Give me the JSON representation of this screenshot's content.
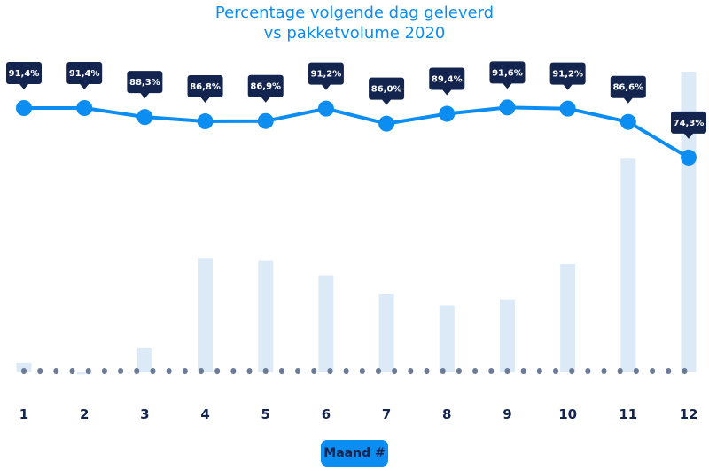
{
  "chart_data": {
    "type": "bar+line",
    "title": "Percentage volgende dag geleverd",
    "subtitle": "vs pakketvolume 2020",
    "xlabel": "Maand #",
    "categories": [
      "1",
      "2",
      "3",
      "4",
      "5",
      "6",
      "7",
      "8",
      "9",
      "10",
      "11",
      "12"
    ],
    "series": [
      {
        "type": "line",
        "values": [
          91.4,
          91.4,
          88.3,
          86.8,
          86.9,
          91.2,
          86.0,
          89.4,
          91.6,
          91.2,
          86.6,
          74.3
        ],
        "labels": [
          "91,4%",
          "91,4%",
          "88,3%",
          "86,8%",
          "86,9%",
          "91,2%",
          "86,0%",
          "89,4%",
          "91,6%",
          "91,2%",
          "86,6%",
          "74,3%"
        ]
      },
      {
        "type": "bar",
        "values": [
          3,
          -1,
          8,
          38,
          37,
          32,
          26,
          22,
          24,
          36,
          71,
          100
        ]
      }
    ],
    "grid": false,
    "colors": {
      "line": "#0b8df2",
      "bar": "#dceaf8",
      "label_bg": "#13244f",
      "label_text": "#ffffff",
      "tick_text": "#13244f",
      "baseline_dots": "#6b7a96"
    }
  }
}
